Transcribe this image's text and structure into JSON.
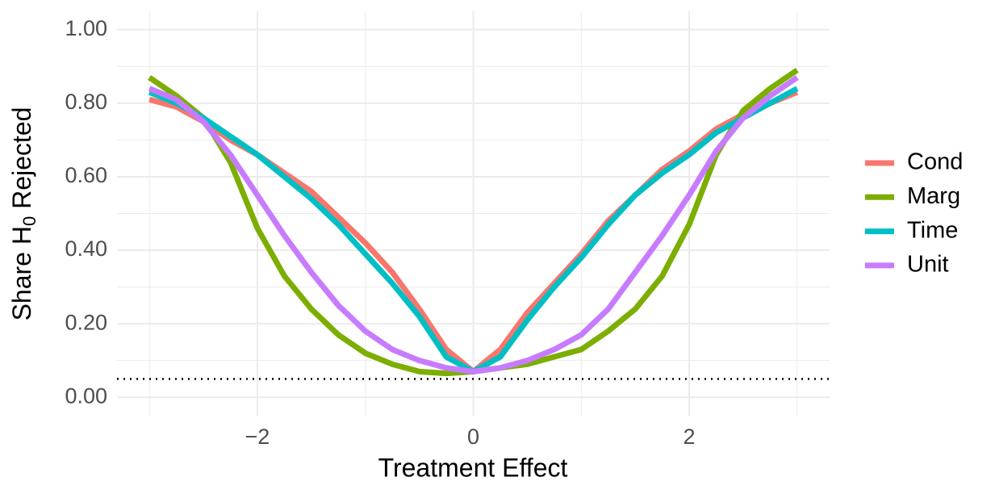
{
  "chart_data": {
    "type": "line",
    "x_label": "Treatment Effect",
    "y_label_parts": [
      "Share  H",
      "0",
      "  Rejected"
    ],
    "x": [
      -3,
      -2.75,
      -2.5,
      -2.25,
      -2,
      -1.75,
      -1.5,
      -1.25,
      -1,
      -0.75,
      -0.5,
      -0.25,
      0,
      0.25,
      0.5,
      0.75,
      1,
      1.25,
      1.5,
      1.75,
      2,
      2.25,
      2.5,
      2.75,
      3
    ],
    "series": [
      {
        "name": "Cond",
        "color": "#F8766D",
        "values": [
          0.81,
          0.79,
          0.75,
          0.7,
          0.66,
          0.61,
          0.56,
          0.49,
          0.42,
          0.34,
          0.24,
          0.13,
          0.07,
          0.13,
          0.23,
          0.31,
          0.39,
          0.48,
          0.55,
          0.62,
          0.67,
          0.73,
          0.77,
          0.8,
          0.83
        ]
      },
      {
        "name": "Marg",
        "color": "#7CAE00",
        "values": [
          0.87,
          0.82,
          0.76,
          0.64,
          0.46,
          0.33,
          0.24,
          0.17,
          0.12,
          0.09,
          0.07,
          0.065,
          0.07,
          0.08,
          0.09,
          0.11,
          0.13,
          0.18,
          0.24,
          0.33,
          0.47,
          0.66,
          0.78,
          0.84,
          0.89
        ]
      },
      {
        "name": "Time",
        "color": "#00BFC4",
        "values": [
          0.83,
          0.8,
          0.76,
          0.71,
          0.66,
          0.6,
          0.54,
          0.47,
          0.39,
          0.31,
          0.22,
          0.11,
          0.07,
          0.11,
          0.21,
          0.3,
          0.38,
          0.47,
          0.55,
          0.61,
          0.66,
          0.72,
          0.76,
          0.8,
          0.84
        ]
      },
      {
        "name": "Unit",
        "color": "#C77CFF",
        "values": [
          0.84,
          0.81,
          0.75,
          0.66,
          0.55,
          0.44,
          0.34,
          0.25,
          0.18,
          0.13,
          0.1,
          0.08,
          0.07,
          0.08,
          0.1,
          0.13,
          0.17,
          0.24,
          0.34,
          0.44,
          0.55,
          0.67,
          0.76,
          0.82,
          0.87
        ]
      }
    ],
    "hline": 0.05,
    "xlim": [
      -3.3,
      3.3
    ],
    "ylim": [
      -0.05,
      1.05
    ],
    "xticks": [
      {
        "value": -2,
        "label": "−2"
      },
      0,
      2
    ],
    "yticks": [
      {
        "value": 0,
        "label": "0.00"
      },
      {
        "value": 0.2,
        "label": "0.20"
      },
      {
        "value": 0.4,
        "label": "0.40"
      },
      {
        "value": 0.6,
        "label": "0.60"
      },
      {
        "value": 0.8,
        "label": "0.80"
      },
      {
        "value": 1,
        "label": "1.00"
      }
    ],
    "minor_xticks": [
      -3,
      -1,
      1,
      3
    ],
    "minor_yticks": [
      0.1,
      0.3,
      0.5,
      0.7,
      0.9
    ],
    "grid": true
  }
}
